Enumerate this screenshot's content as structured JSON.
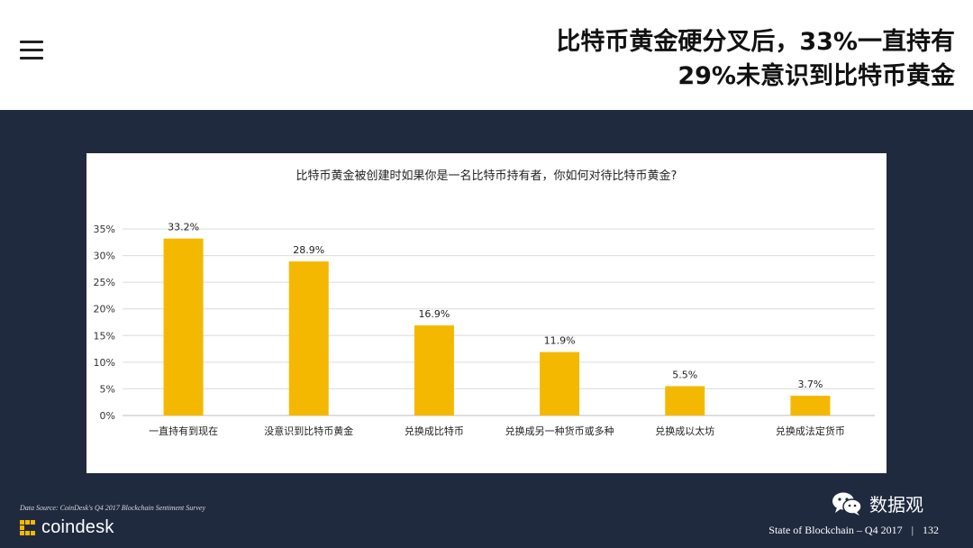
{
  "header": {
    "title_line1": "比特币黄金硬分叉后，33%一直持有",
    "title_line2": "29%未意识到比特币黄金"
  },
  "chart_data": {
    "type": "bar",
    "title": "比特币黄金被创建时如果你是一名比特币持有者，你如何对待比特币黄金?",
    "categories": [
      "一直持有到现在",
      "没意识到比特币黄金",
      "兑换成比特币",
      "兑换成另一种货币或多种",
      "兑换成以太坊",
      "兑换成法定货币"
    ],
    "values": [
      33.2,
      28.9,
      16.9,
      11.9,
      5.5,
      3.7
    ],
    "value_labels": [
      "33.2%",
      "28.9%",
      "16.9%",
      "11.9%",
      "5.5%",
      "3.7%"
    ],
    "y_ticks": [
      0,
      5,
      10,
      15,
      20,
      25,
      30,
      35
    ],
    "y_tick_labels": [
      "0%",
      "5%",
      "10%",
      "15%",
      "20%",
      "25%",
      "30%",
      "35%"
    ],
    "ylim": [
      0,
      35
    ],
    "grid": true,
    "bar_color": "#f5b800"
  },
  "footer": {
    "source": "Data Source: CoinDesk's Q4 2017 Blockchain Sentiment Survey",
    "logo_text": "coindesk",
    "report": "State of Blockchain – Q4 2017",
    "separator": "|",
    "page": "132",
    "wechat_label": "数据观"
  },
  "icons": {
    "menu": "hamburger-menu-icon",
    "logo": "coindesk-logo-icon",
    "wechat": "wechat-icon"
  }
}
